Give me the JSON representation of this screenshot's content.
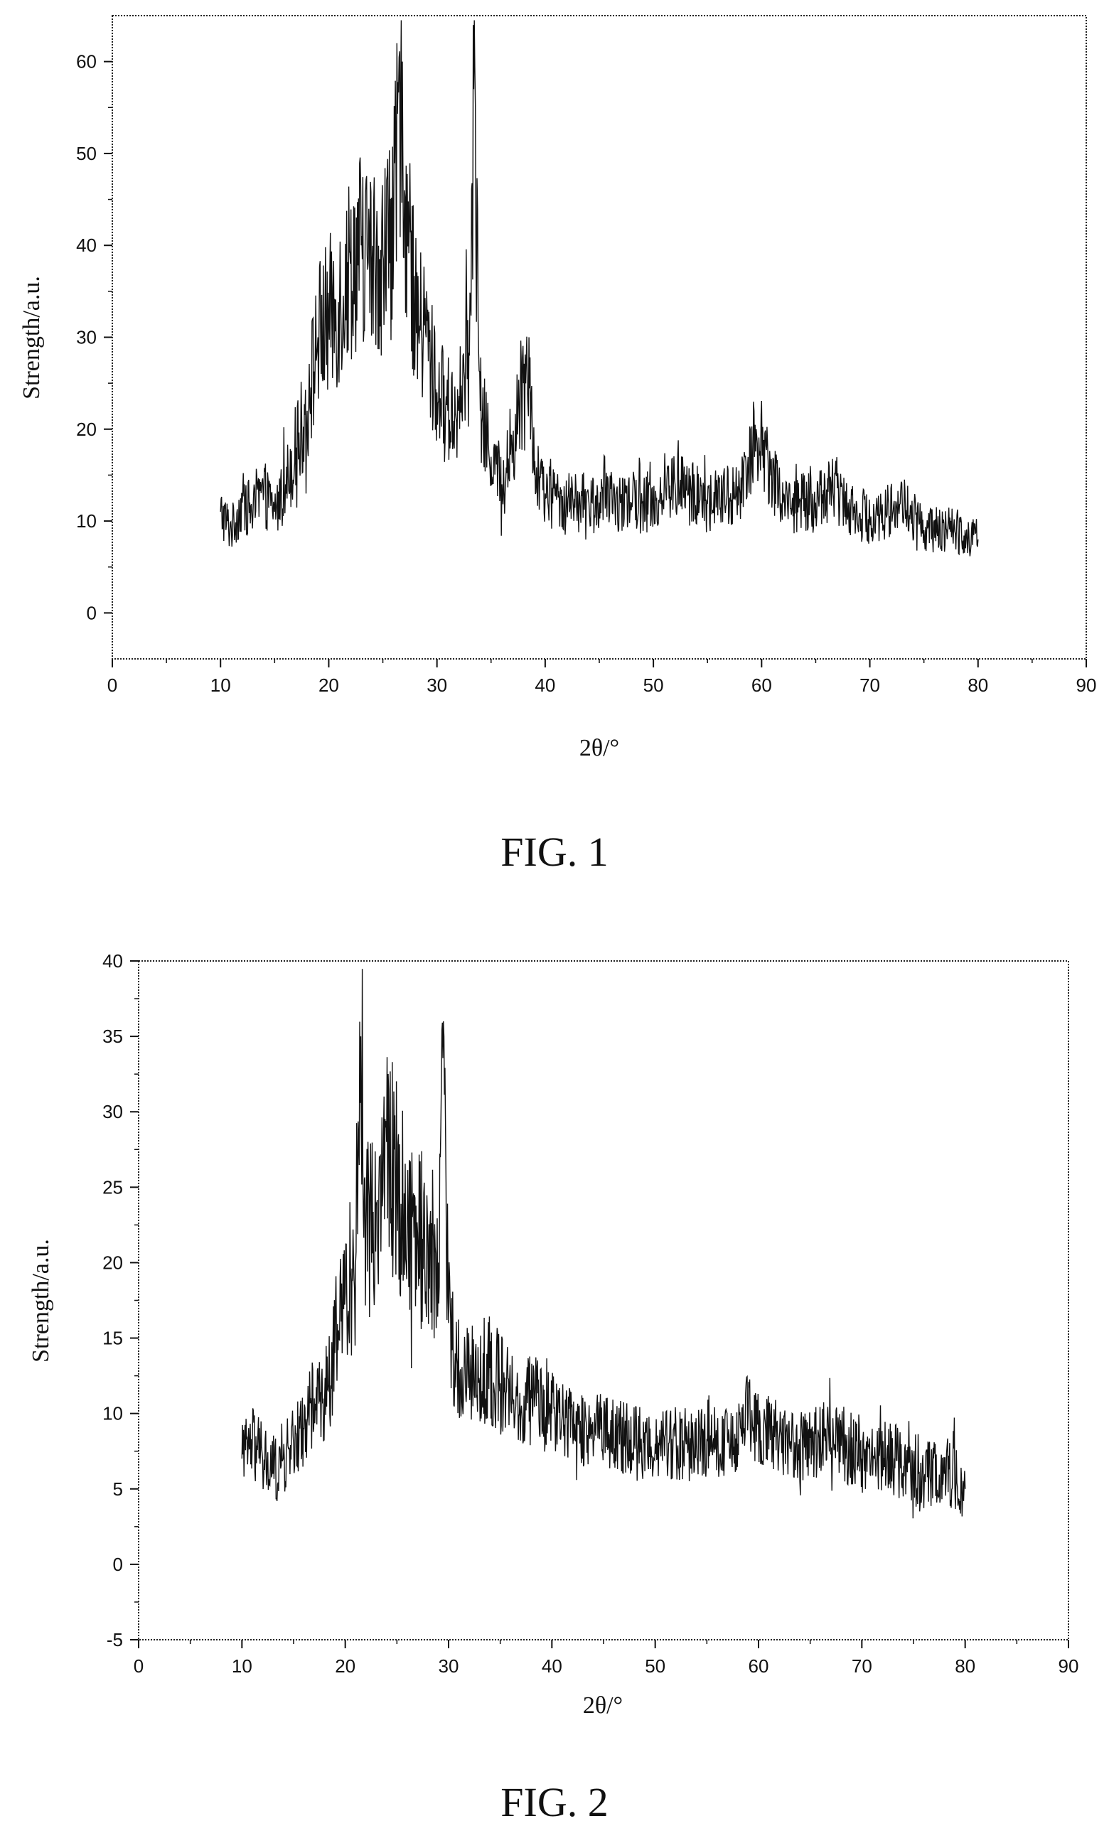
{
  "chart_data": [
    {
      "type": "line",
      "caption": "FIG. 1",
      "xlabel": "2θ/°",
      "ylabel": "Strength/a.u.",
      "xlim": [
        0,
        90
      ],
      "ylim": [
        -5,
        65
      ],
      "xticks": [
        0,
        10,
        20,
        30,
        40,
        50,
        60,
        70,
        80,
        90
      ],
      "yticks": [
        0,
        10,
        20,
        30,
        40,
        50,
        60
      ],
      "grid": false,
      "series": [
        {
          "x": [
            10,
            11,
            12,
            13,
            14,
            15,
            16,
            17,
            18,
            19,
            20,
            21,
            22,
            23,
            24,
            25,
            26,
            26.8,
            27,
            28,
            29,
            30,
            31,
            32,
            33,
            33.4,
            34,
            35,
            36,
            37,
            38,
            38.5,
            39,
            40,
            42,
            45,
            48,
            50,
            52,
            55,
            58,
            59.5,
            62,
            65,
            66.5,
            68,
            70,
            73,
            75,
            78,
            80
          ],
          "y": [
            11,
            9,
            12,
            11,
            13,
            11,
            14,
            18,
            22,
            30,
            32,
            34,
            38,
            40,
            38,
            39,
            42,
            60,
            46,
            32,
            30,
            24,
            22,
            22,
            28,
            57,
            22,
            17,
            14,
            18,
            25,
            30,
            15,
            13,
            12,
            12,
            12,
            12,
            14,
            12,
            13,
            20,
            12,
            12,
            14,
            12,
            10,
            12,
            9,
            9,
            8
          ]
        }
      ]
    },
    {
      "type": "line",
      "caption": "FIG. 2",
      "xlabel": "2θ/°",
      "ylabel": "Strength/a.u.",
      "xlim": [
        0,
        90
      ],
      "ylim": [
        -5,
        40
      ],
      "xticks": [
        0,
        10,
        20,
        30,
        40,
        50,
        60,
        70,
        80,
        90
      ],
      "yticks": [
        -5,
        0,
        5,
        10,
        15,
        20,
        25,
        30,
        35,
        40
      ],
      "grid": false,
      "series": [
        {
          "x": [
            10,
            11,
            12,
            13,
            14,
            15,
            16,
            17,
            18,
            19,
            20,
            21,
            21.5,
            22,
            23,
            24,
            25,
            26,
            27,
            28,
            29,
            29.5,
            30,
            31,
            32,
            33,
            34,
            35,
            36,
            37,
            38,
            40,
            42,
            45,
            48,
            50,
            54,
            58,
            59,
            60,
            63,
            66,
            66.5,
            70,
            73,
            75.5,
            78,
            80
          ],
          "y": [
            7,
            8,
            7,
            6,
            7,
            8,
            9,
            11,
            11,
            14,
            18,
            20,
            35,
            22,
            24,
            28,
            25,
            23,
            22,
            21,
            20,
            36,
            16,
            12,
            13,
            12,
            13,
            12,
            11,
            10,
            11,
            10,
            9,
            9,
            8,
            8,
            8,
            8,
            10,
            9,
            8,
            8,
            9,
            7,
            7,
            6,
            6,
            5
          ]
        }
      ]
    }
  ]
}
